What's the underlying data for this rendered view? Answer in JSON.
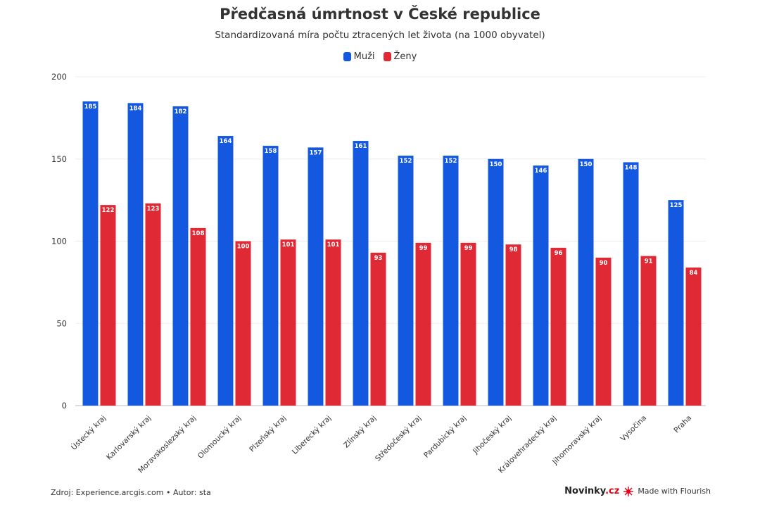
{
  "chart_data": {
    "type": "bar",
    "title": "Předčasná úmrtnost v České republice",
    "subtitle": "Standardizovaná míra počtu ztracených let života (na 1000 obyvatel)",
    "categories": [
      "Ústecký kraj",
      "Karlovarský kraj",
      "Moravskoslezský kraj",
      "Olomoucký kraj",
      "Plzeňský kraj",
      "Liberecký kraj",
      "Zlínský kraj",
      "Středočeský kraj",
      "Pardubický kraj",
      "Jihočeský kraj",
      "Královehradecký kraj",
      "Jihomoravský kraj",
      "Vysočina",
      "Praha"
    ],
    "series": [
      {
        "name": "Muži",
        "color": "#1558e0",
        "values": [
          185,
          184,
          182,
          164,
          158,
          157,
          161,
          152,
          152,
          150,
          146,
          150,
          148,
          125
        ]
      },
      {
        "name": "Ženy",
        "color": "#df2a35",
        "values": [
          122,
          123,
          108,
          100,
          101,
          101,
          93,
          99,
          99,
          98,
          96,
          90,
          91,
          84
        ]
      }
    ],
    "ylim": [
      0,
      200
    ],
    "yticks": [
      0,
      50,
      100,
      150,
      200
    ],
    "grid": true,
    "legend_position": "top-center"
  },
  "footer": {
    "source": "Zdroj: Experience.arcgis.com • Autor: sta",
    "brand": "Novinky",
    "brand_suffix": ".cz",
    "made_with": "Made with Flourish"
  }
}
